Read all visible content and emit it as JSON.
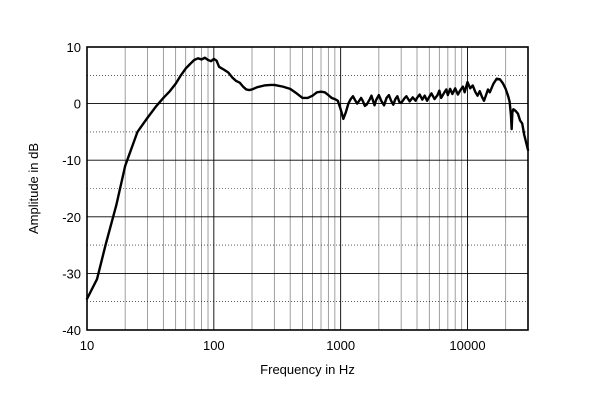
{
  "chart_data": {
    "type": "line",
    "title": "",
    "xlabel": "Frequency in Hz",
    "ylabel": "Amplitude in dB",
    "x_scale": "log",
    "xlim": [
      10,
      30000
    ],
    "ylim": [
      -40,
      10
    ],
    "grid": true,
    "x_ticks": [
      {
        "value": 10,
        "label": "10"
      },
      {
        "value": 100,
        "label": "100"
      },
      {
        "value": 1000,
        "label": "1000"
      },
      {
        "value": 10000,
        "label": "10000"
      }
    ],
    "y_ticks": [
      {
        "value": 10,
        "label": "10"
      },
      {
        "value": 0,
        "label": "0"
      },
      {
        "value": -10,
        "label": "-10"
      },
      {
        "value": -20,
        "label": "-20"
      },
      {
        "value": -30,
        "label": "-30"
      },
      {
        "value": -40,
        "label": "-40"
      }
    ],
    "series": [
      {
        "color": "#000000",
        "points": [
          [
            10,
            -34.5
          ],
          [
            12,
            -31
          ],
          [
            14,
            -25
          ],
          [
            17,
            -18
          ],
          [
            20,
            -11
          ],
          [
            25,
            -5
          ],
          [
            30,
            -2.5
          ],
          [
            35,
            -0.5
          ],
          [
            40,
            1
          ],
          [
            45,
            2.2
          ],
          [
            50,
            3.5
          ],
          [
            55,
            5
          ],
          [
            60,
            6.2
          ],
          [
            65,
            7
          ],
          [
            70,
            7.7
          ],
          [
            75,
            8
          ],
          [
            80,
            7.8
          ],
          [
            85,
            8.1
          ],
          [
            90,
            7.7
          ],
          [
            95,
            7.5
          ],
          [
            100,
            7.9
          ],
          [
            105,
            7.6
          ],
          [
            110,
            6.5
          ],
          [
            120,
            6
          ],
          [
            130,
            5.5
          ],
          [
            140,
            4.6
          ],
          [
            150,
            4
          ],
          [
            160,
            3.7
          ],
          [
            170,
            3
          ],
          [
            180,
            2.5
          ],
          [
            190,
            2.4
          ],
          [
            200,
            2.5
          ],
          [
            220,
            2.9
          ],
          [
            250,
            3.2
          ],
          [
            280,
            3.3
          ],
          [
            300,
            3.3
          ],
          [
            350,
            3
          ],
          [
            400,
            2.6
          ],
          [
            450,
            1.8
          ],
          [
            500,
            1
          ],
          [
            550,
            1
          ],
          [
            600,
            1.4
          ],
          [
            650,
            2
          ],
          [
            700,
            2.1
          ],
          [
            750,
            2
          ],
          [
            800,
            1.5
          ],
          [
            850,
            1
          ],
          [
            900,
            0.8
          ],
          [
            950,
            0.5
          ],
          [
            1000,
            -1
          ],
          [
            1050,
            -2.7
          ],
          [
            1100,
            -1.5
          ],
          [
            1150,
            0
          ],
          [
            1200,
            0.8
          ],
          [
            1250,
            1.3
          ],
          [
            1300,
            0.6
          ],
          [
            1350,
            0
          ],
          [
            1400,
            0.5
          ],
          [
            1450,
            1
          ],
          [
            1500,
            0.4
          ],
          [
            1550,
            -0.4
          ],
          [
            1600,
            -0.2
          ],
          [
            1700,
            0.8
          ],
          [
            1750,
            1.4
          ],
          [
            1800,
            0.5
          ],
          [
            1850,
            -0.3
          ],
          [
            1900,
            0.6
          ],
          [
            2000,
            1.5
          ],
          [
            2100,
            0.4
          ],
          [
            2200,
            -0.3
          ],
          [
            2300,
            1
          ],
          [
            2400,
            1.5
          ],
          [
            2500,
            0.5
          ],
          [
            2600,
            -0.2
          ],
          [
            2700,
            0.8
          ],
          [
            2800,
            1.3
          ],
          [
            2900,
            0.3
          ],
          [
            3000,
            0.1
          ],
          [
            3200,
            1
          ],
          [
            3300,
            1.3
          ],
          [
            3500,
            0.4
          ],
          [
            3700,
            1.1
          ],
          [
            3900,
            0.5
          ],
          [
            4000,
            1
          ],
          [
            4200,
            1.6
          ],
          [
            4400,
            0.7
          ],
          [
            4600,
            1.4
          ],
          [
            4800,
            0.5
          ],
          [
            5000,
            1.2
          ],
          [
            5200,
            1.8
          ],
          [
            5500,
            0.8
          ],
          [
            5800,
            1.5
          ],
          [
            6000,
            2.3
          ],
          [
            6200,
            1
          ],
          [
            6500,
            1.8
          ],
          [
            6800,
            2.5
          ],
          [
            7000,
            1.5
          ],
          [
            7300,
            2.6
          ],
          [
            7600,
            1.7
          ],
          [
            8000,
            2.7
          ],
          [
            8400,
            1.6
          ],
          [
            8800,
            2.4
          ],
          [
            9200,
            3
          ],
          [
            9500,
            2
          ],
          [
            10000,
            3.8
          ],
          [
            10500,
            2.7
          ],
          [
            11000,
            3.2
          ],
          [
            11500,
            2.1
          ],
          [
            12000,
            1.4
          ],
          [
            12500,
            2.2
          ],
          [
            13000,
            1.2
          ],
          [
            13500,
            0.5
          ],
          [
            14000,
            1.5
          ],
          [
            14500,
            2.5
          ],
          [
            15000,
            2
          ],
          [
            16000,
            3.5
          ],
          [
            17000,
            4.4
          ],
          [
            18000,
            4.3
          ],
          [
            19000,
            3.6
          ],
          [
            20000,
            2.6
          ],
          [
            21000,
            1.2
          ],
          [
            21500,
            0.3
          ],
          [
            22000,
            -2
          ],
          [
            22300,
            -4.5
          ],
          [
            22600,
            -1.5
          ],
          [
            23000,
            -1
          ],
          [
            24000,
            -1.3
          ],
          [
            25000,
            -1.8
          ],
          [
            26000,
            -3
          ],
          [
            27000,
            -3.5
          ],
          [
            28000,
            -5.5
          ],
          [
            30000,
            -8.2
          ]
        ]
      }
    ]
  }
}
